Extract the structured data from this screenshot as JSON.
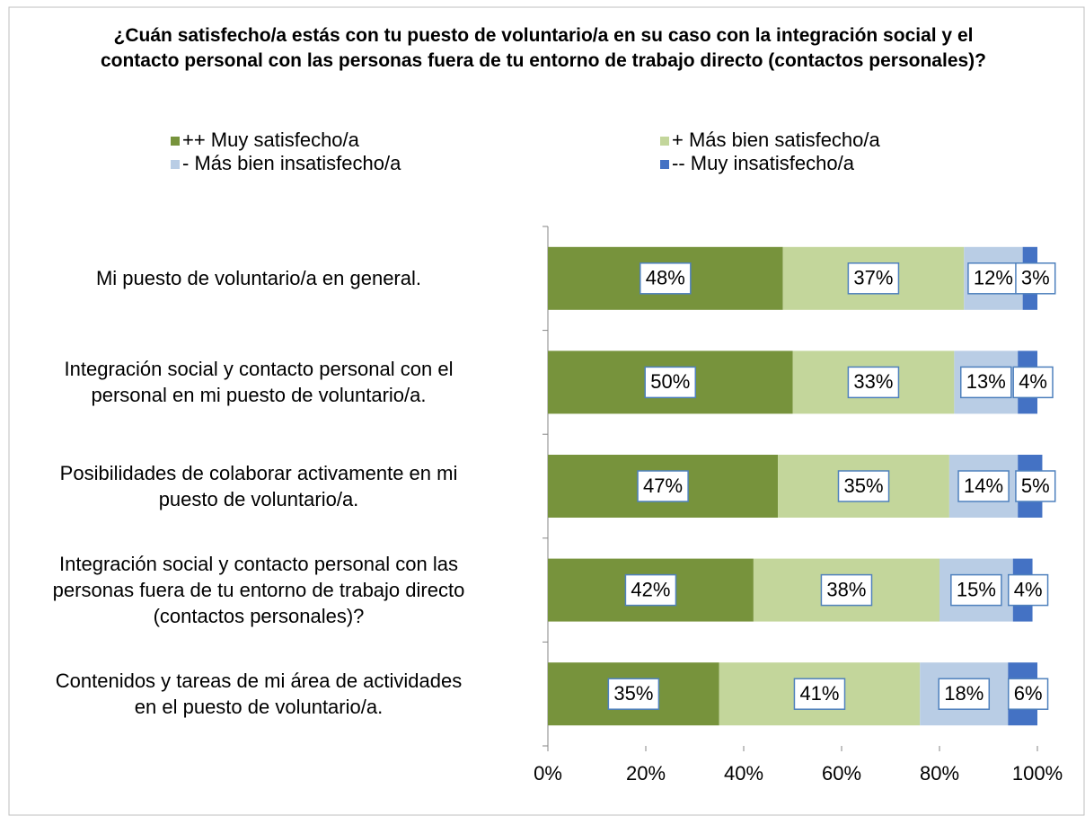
{
  "chart_data": {
    "type": "stacked-bar-horizontal",
    "title": "¿Cuán satisfecho/a estás con tu puesto de voluntario/a en su caso con la integración social y el contacto personal con las personas fuera de tu entorno de trabajo directo (contactos personales)?",
    "categories": [
      "Mi puesto de voluntario/a en general.",
      "Integración social y contacto personal con el\npersonal en mi puesto de voluntario/a.",
      "Posibilidades de colaborar activamente en mi\npuesto de voluntario/a.",
      "Integración social y contacto personal con las\npersonas fuera de tu entorno de trabajo directo\n(contactos personales)?",
      "Contenidos y tareas de mi área de actividades\nen el puesto de voluntario/a."
    ],
    "series": [
      {
        "name": "++ Muy satisfecho/a",
        "color": "#77933c",
        "values": [
          48,
          50,
          47,
          42,
          35
        ],
        "value_labels": [
          "48%",
          "50%",
          "47%",
          "42%",
          "35%"
        ]
      },
      {
        "name": "+ Más bien satisfecho/a",
        "color": "#c3d69b",
        "values": [
          37,
          33,
          35,
          38,
          41
        ],
        "value_labels": [
          "37%",
          "33%",
          "35%",
          "38%",
          "41%"
        ]
      },
      {
        "name": "- Más bien insatisfecho/a",
        "color": "#b9cde5",
        "values": [
          12,
          13,
          14,
          15,
          18
        ],
        "value_labels": [
          "12%",
          "13%",
          "14%",
          "15%",
          "18%"
        ]
      },
      {
        "name": "-- Muy insatisfecho/a",
        "color": "#4472c4",
        "values": [
          3,
          4,
          5,
          4,
          6
        ],
        "value_labels": [
          "3%",
          "4%",
          "5%",
          "4%",
          "6%"
        ]
      }
    ],
    "xlim": [
      0,
      100
    ],
    "xticks": [
      {
        "value": 0,
        "label": "0%"
      },
      {
        "value": 20,
        "label": "20%"
      },
      {
        "value": 40,
        "label": "40%"
      },
      {
        "value": 60,
        "label": "60%"
      },
      {
        "value": 80,
        "label": "80%"
      },
      {
        "value": 100,
        "label": "100%"
      }
    ]
  }
}
